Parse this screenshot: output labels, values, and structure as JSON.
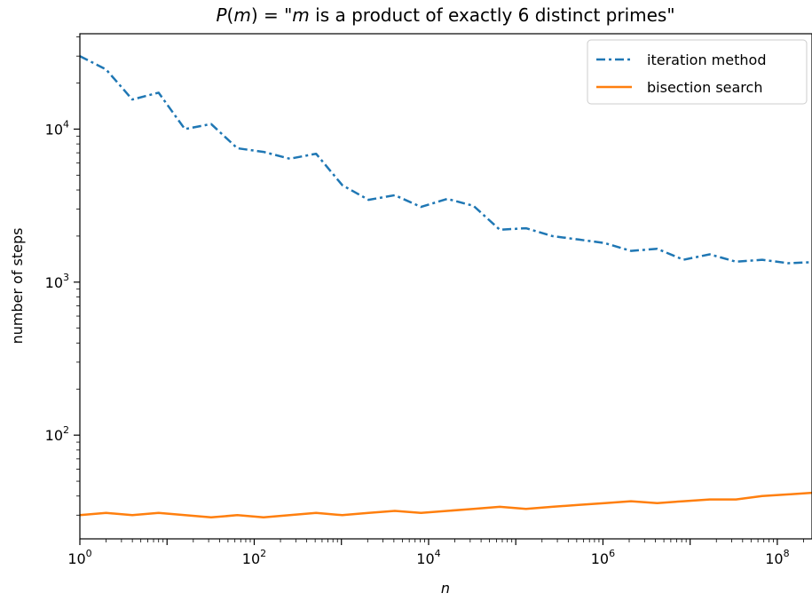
{
  "chart_data": {
    "type": "line",
    "title": "P(m) = \"m is a product of exactly 6 distinct primes\"",
    "title_parts": {
      "func": "P",
      "arg": "m",
      "eq": " = \"",
      "var": "m",
      "rest": " is a product of exactly 6 distinct primes\""
    },
    "xlabel": "n",
    "ylabel": "number of steps",
    "x_scale": "log",
    "y_scale": "log",
    "xlim": [
      1,
      250000000
    ],
    "ylim": [
      21,
      42000
    ],
    "x_ticks": [
      {
        "base": "10",
        "exp": "0",
        "value": 1
      },
      {
        "base": "10",
        "exp": "2",
        "value": 100
      },
      {
        "base": "10",
        "exp": "4",
        "value": 10000
      },
      {
        "base": "10",
        "exp": "6",
        "value": 1000000
      },
      {
        "base": "10",
        "exp": "8",
        "value": 100000000
      }
    ],
    "y_ticks": [
      {
        "base": "10",
        "exp": "2",
        "value": 100
      },
      {
        "base": "10",
        "exp": "3",
        "value": 1000
      },
      {
        "base": "10",
        "exp": "4",
        "value": 10000
      }
    ],
    "legend_position": "top-right",
    "grid": false,
    "series": [
      {
        "name": "iteration method",
        "color": "#1f77b4",
        "style": "dashdot",
        "x": [
          1,
          2,
          4,
          8,
          16,
          32,
          64,
          128,
          256,
          512,
          1024,
          2048,
          4096,
          8192,
          16384,
          32768,
          65536,
          131072,
          262144,
          524288,
          1048576,
          2097152,
          4194304,
          8388608,
          16777216,
          33554432,
          67108864,
          134217728,
          250000000
        ],
        "values": [
          30000,
          24500,
          15600,
          17300,
          10000,
          10800,
          7500,
          7100,
          6400,
          6900,
          4300,
          3450,
          3700,
          3100,
          3500,
          3150,
          2200,
          2250,
          2000,
          1900,
          1800,
          1600,
          1650,
          1400,
          1520,
          1360,
          1400,
          1330,
          1350
        ]
      },
      {
        "name": "bisection search",
        "color": "#ff7f0e",
        "style": "solid",
        "x": [
          1,
          2,
          4,
          8,
          16,
          32,
          64,
          128,
          256,
          512,
          1024,
          2048,
          4096,
          8192,
          16384,
          32768,
          65536,
          131072,
          262144,
          524288,
          1048576,
          2097152,
          4194304,
          8388608,
          16777216,
          33554432,
          67108864,
          134217728,
          250000000
        ],
        "values": [
          30,
          31,
          30,
          31,
          30,
          29,
          30,
          29,
          30,
          31,
          30,
          31,
          32,
          31,
          32,
          33,
          34,
          33,
          34,
          35,
          36,
          37,
          36,
          37,
          38,
          38,
          40,
          41,
          42
        ]
      }
    ]
  }
}
